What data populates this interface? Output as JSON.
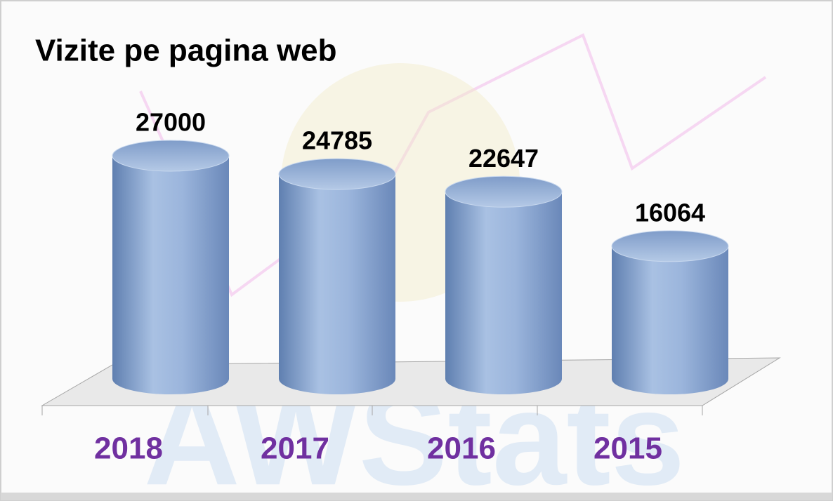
{
  "chart_data": {
    "type": "bar",
    "title": "Vizite pe pagina web",
    "watermark": "AWStats",
    "categories": [
      "2018",
      "2017",
      "2016",
      "2015"
    ],
    "values": [
      27000,
      24785,
      22647,
      16064
    ],
    "color": "#8aa6d2",
    "category_color": "#7030a0"
  }
}
